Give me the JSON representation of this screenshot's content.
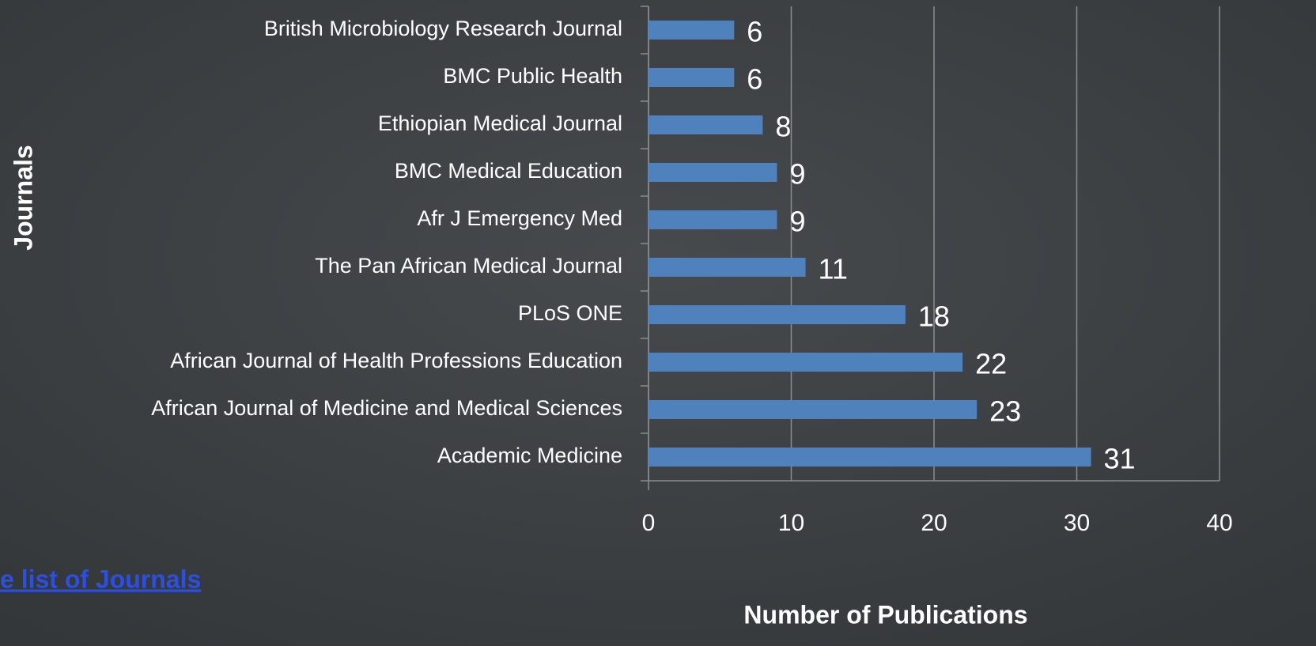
{
  "chart_data": {
    "type": "bar",
    "orientation": "horizontal",
    "x_label": "Number of Publications",
    "y_label": "Journals",
    "categories": [
      "British Microbiology Research Journal",
      "BMC Public Health",
      "Ethiopian Medical Journal",
      "BMC Medical Education",
      "Afr J Emergency Med",
      "The Pan African Medical Journal",
      "PLoS ONE",
      "African Journal of Health Professions Education",
      "African Journal of Medicine and Medical Sciences",
      "Academic Medicine"
    ],
    "values": [
      6,
      6,
      8,
      9,
      9,
      11,
      18,
      22,
      23,
      31
    ],
    "color": "#4f81bd",
    "xlim": [
      0,
      40
    ],
    "xticks": [
      0,
      10,
      20,
      30,
      40
    ],
    "grid": true
  },
  "link_text": "e list of Journals"
}
